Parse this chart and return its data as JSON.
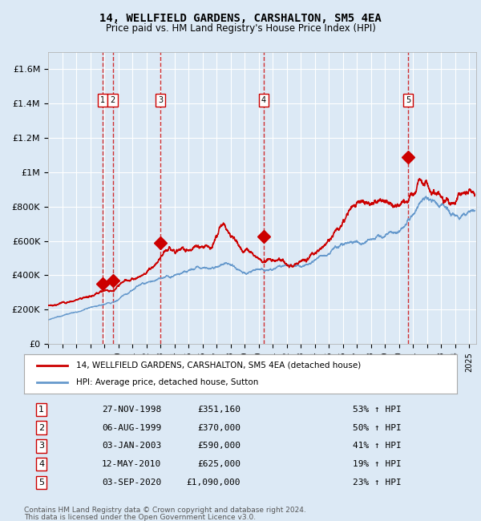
{
  "title": "14, WELLFIELD GARDENS, CARSHALTON, SM5 4EA",
  "subtitle": "Price paid vs. HM Land Registry's House Price Index (HPI)",
  "xlabel": "",
  "ylabel": "",
  "ylim": [
    0,
    1700000
  ],
  "xlim_start": 1995.0,
  "xlim_end": 2025.5,
  "yticks": [
    0,
    200000,
    400000,
    600000,
    800000,
    1000000,
    1200000,
    1400000,
    1600000
  ],
  "ytick_labels": [
    "£0",
    "£200K",
    "£400K",
    "£600K",
    "£800K",
    "£1M",
    "£1.2M",
    "£1.4M",
    "£1.6M"
  ],
  "xtick_years": [
    1995,
    1996,
    1997,
    1998,
    1999,
    2000,
    2001,
    2002,
    2003,
    2004,
    2005,
    2006,
    2007,
    2008,
    2009,
    2010,
    2011,
    2012,
    2013,
    2014,
    2015,
    2016,
    2017,
    2018,
    2019,
    2020,
    2021,
    2022,
    2023,
    2024,
    2025
  ],
  "background_color": "#dce9f5",
  "plot_bg_color": "#dce9f5",
  "grid_color": "#ffffff",
  "red_line_color": "#cc0000",
  "blue_line_color": "#6699cc",
  "marker_color": "#cc0000",
  "dashed_line_color": "#cc0000",
  "legend_red_label": "14, WELLFIELD GARDENS, CARSHALTON, SM5 4EA (detached house)",
  "legend_blue_label": "HPI: Average price, detached house, Sutton",
  "sales": [
    {
      "num": 1,
      "date": "27-NOV-1998",
      "year": 1998.9,
      "price": 351160,
      "pct": "53%",
      "dir": "↑"
    },
    {
      "num": 2,
      "date": "06-AUG-1999",
      "year": 1999.6,
      "price": 370000,
      "pct": "50%",
      "dir": "↑"
    },
    {
      "num": 3,
      "date": "03-JAN-2003",
      "year": 2003.0,
      "price": 590000,
      "pct": "41%",
      "dir": "↑"
    },
    {
      "num": 4,
      "date": "12-MAY-2010",
      "year": 2010.37,
      "price": 625000,
      "pct": "19%",
      "dir": "↑"
    },
    {
      "num": 5,
      "date": "03-SEP-2020",
      "year": 2020.67,
      "price": 1090000,
      "pct": "23%",
      "dir": "↑"
    }
  ],
  "footer1": "Contains HM Land Registry data © Crown copyright and database right 2024.",
  "footer2": "This data is licensed under the Open Government Licence v3.0."
}
